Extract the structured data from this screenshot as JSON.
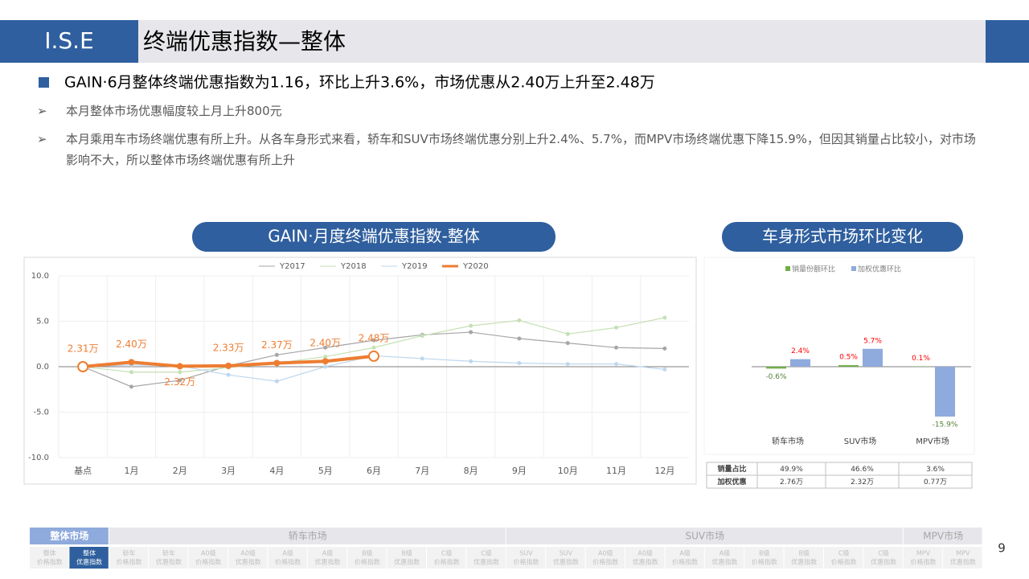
{
  "header": {
    "brand": "I.S.E",
    "title": "终端优惠指数—整体",
    "page": "9"
  },
  "bullets": {
    "main": "GAIN·6月整体终端优惠指数为1.16，环比上升3.6%，市场优惠从2.40万上升至2.48万",
    "subs": [
      "本月整体市场优惠幅度较上月上升800元",
      "本月乘用车市场终端优惠有所上升。从各车身形式来看，轿车和SUV市场终端优惠分别上升2.4%、5.7%，而MPV市场终端优惠下降15.9%，但因其销量占比较小，对市场影响不大，所以整体市场终端优惠有所上升"
    ]
  },
  "chart_data": [
    {
      "type": "line",
      "title": "GAIN·月度终端优惠指数-整体",
      "categories": [
        "基点",
        "1月",
        "2月",
        "3月",
        "4月",
        "5月",
        "6月",
        "7月",
        "8月",
        "9月",
        "10月",
        "11月",
        "12月"
      ],
      "series": [
        {
          "name": "Y2017",
          "color": "#a6a6a6",
          "values": [
            0,
            -2.2,
            -1.5,
            0.1,
            1.3,
            2.1,
            2.9,
            3.5,
            3.8,
            3.1,
            2.6,
            2.1,
            2.0
          ]
        },
        {
          "name": "Y2018",
          "color": "#c5e0b4",
          "values": [
            0,
            -0.6,
            -0.6,
            -0.1,
            0.4,
            1.1,
            2.1,
            3.4,
            4.5,
            5.1,
            3.6,
            4.3,
            5.4
          ]
        },
        {
          "name": "Y2019",
          "color": "#bdd7ee",
          "values": [
            0,
            0.2,
            0.1,
            -0.9,
            -1.6,
            0,
            1.2,
            0.9,
            0.6,
            0.4,
            0.3,
            0.3,
            -0.3
          ]
        },
        {
          "name": "Y2020",
          "color": "#ed7d31",
          "values": [
            0,
            0.5,
            0.05,
            0.1,
            0.4,
            0.6,
            1.16,
            null,
            null,
            null,
            null,
            null,
            null
          ]
        }
      ],
      "annotations": [
        "2.31万",
        "2.40万",
        "2.32万",
        "2.33万",
        "2.37万",
        "2.40万",
        "2.48万"
      ],
      "ylim": [
        -10,
        10
      ],
      "yticks": [
        {
          "value": 10,
          "label": "10.0"
        },
        {
          "value": 5,
          "label": "5.0"
        },
        {
          "value": 0,
          "label": "0.0"
        },
        {
          "value": -5,
          "label": "-5.0"
        },
        {
          "value": -10,
          "label": "-10.0"
        }
      ],
      "grid": true,
      "legend": "top"
    },
    {
      "type": "bar",
      "title": "车身形式市场环比变化",
      "categories": [
        "轿车市场",
        "SUV市场",
        "MPV市场"
      ],
      "series": [
        {
          "name": "销量份额环比",
          "color": "#70ad47",
          "values": [
            -0.6,
            0.5,
            0.1
          ],
          "value_labels": [
            "-0.6%",
            "0.5%",
            "0.1%"
          ]
        },
        {
          "name": "加权优惠环比",
          "color": "#8faadc",
          "values": [
            2.4,
            5.7,
            -15.9
          ],
          "value_labels": [
            "2.4%",
            "5.7%",
            "-15.9%"
          ]
        }
      ],
      "ylim": [
        -20,
        10
      ],
      "legend": "top"
    }
  ],
  "table": {
    "rows": [
      [
        "销量占比",
        "49.9%",
        "46.6%",
        "3.6%"
      ],
      [
        "加权优惠",
        "2.76万",
        "2.32万",
        "0.77万"
      ]
    ]
  },
  "nav": {
    "groups": [
      {
        "label": "整体市场",
        "items": [
          [
            "整体",
            "价格指数"
          ],
          [
            "整体",
            "优惠指数"
          ]
        ]
      },
      {
        "label": "轿车市场",
        "items": [
          [
            "轿车",
            "价格指数"
          ],
          [
            "轿车",
            "优惠指数"
          ],
          [
            "A0级",
            "价格指数"
          ],
          [
            "A0级",
            "优惠指数"
          ],
          [
            "A级",
            "价格指数"
          ],
          [
            "A级",
            "优惠指数"
          ],
          [
            "B级",
            "价格指数"
          ],
          [
            "B级",
            "优惠指数"
          ],
          [
            "C级",
            "价格指数"
          ],
          [
            "C级",
            "优惠指数"
          ]
        ]
      },
      {
        "label": "SUV市场",
        "items": [
          [
            "SUV",
            "价格指数"
          ],
          [
            "SUV",
            "优惠指数"
          ],
          [
            "A0级",
            "价格指数"
          ],
          [
            "A0级",
            "优惠指数"
          ],
          [
            "A级",
            "价格指数"
          ],
          [
            "A级",
            "优惠指数"
          ],
          [
            "B级",
            "价格指数"
          ],
          [
            "B级",
            "优惠指数"
          ],
          [
            "C级",
            "价格指数"
          ],
          [
            "C级",
            "优惠指数"
          ]
        ]
      },
      {
        "label": "MPV市场",
        "items": [
          [
            "MPV",
            "价格指数"
          ],
          [
            "MPV",
            "优惠指数"
          ]
        ]
      }
    ]
  }
}
